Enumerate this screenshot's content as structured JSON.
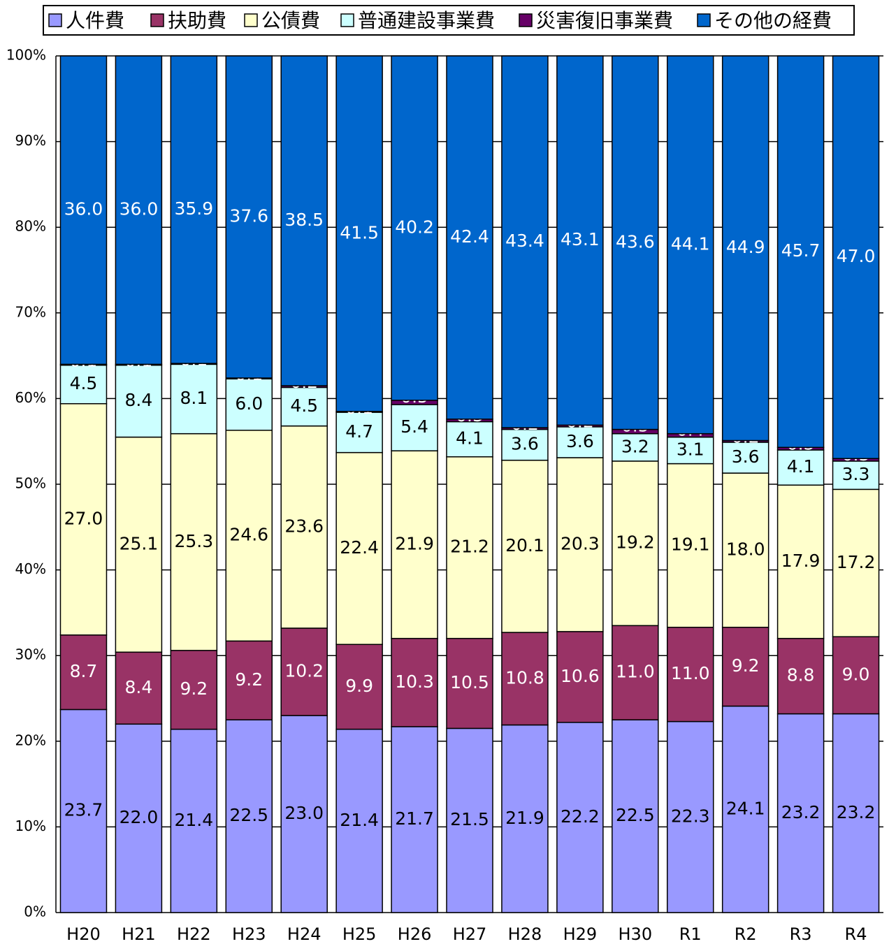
{
  "chart_data": {
    "type": "stacked_bar",
    "categories": [
      "H20",
      "H21",
      "H22",
      "H23",
      "H24",
      "H25",
      "H26",
      "H27",
      "H28",
      "H29",
      "H30",
      "R1",
      "R2",
      "R3",
      "R4"
    ],
    "ylim": [
      0,
      100
    ],
    "yticks": [
      {
        "value": 0,
        "label": "0%"
      },
      {
        "value": 10,
        "label": "10%"
      },
      {
        "value": 20,
        "label": "20%"
      },
      {
        "value": 30,
        "label": "30%"
      },
      {
        "value": 40,
        "label": "40%"
      },
      {
        "value": 50,
        "label": "50%"
      },
      {
        "value": 60,
        "label": "60%"
      },
      {
        "value": 70,
        "label": "70%"
      },
      {
        "value": 80,
        "label": "80%"
      },
      {
        "value": 90,
        "label": "90%"
      },
      {
        "value": 100,
        "label": "100%"
      }
    ],
    "grid": true,
    "legend": "top",
    "series": [
      {
        "name": "人件費",
        "color": "#9999ff",
        "values": [
          23.7,
          22.0,
          21.4,
          22.5,
          23.0,
          21.4,
          21.7,
          21.5,
          21.9,
          22.2,
          22.5,
          22.3,
          24.1,
          23.2,
          23.2
        ],
        "value_labels": [
          "23.7",
          "22.0",
          "21.4",
          "22.5",
          "23.0",
          "21.4",
          "21.7",
          "21.5",
          "21.9",
          "22.2",
          "22.5",
          "22.3",
          "24.1",
          "23.2",
          "23.2"
        ]
      },
      {
        "name": "扶助費",
        "color": "#993366",
        "values": [
          8.7,
          8.4,
          9.2,
          9.2,
          10.2,
          9.9,
          10.3,
          10.5,
          10.8,
          10.6,
          11.0,
          11.0,
          9.2,
          8.8,
          9.0
        ],
        "value_labels": [
          "8.7",
          "8.4",
          "9.2",
          "9.2",
          "10.2",
          "9.9",
          "10.3",
          "10.5",
          "10.8",
          "10.6",
          "11.0",
          "11.0",
          "9.2",
          "8.8",
          "9.0"
        ]
      },
      {
        "name": "公債費",
        "color": "#ffffcc",
        "values": [
          27.0,
          25.1,
          25.3,
          24.6,
          23.6,
          22.4,
          21.9,
          21.2,
          20.1,
          20.3,
          19.2,
          19.1,
          18.0,
          17.9,
          17.2
        ],
        "value_labels": [
          "27.0",
          "25.1",
          "25.3",
          "24.6",
          "23.6",
          "22.4",
          "21.9",
          "21.2",
          "20.1",
          "20.3",
          "19.2",
          "19.1",
          "18.0",
          "17.9",
          "17.2"
        ]
      },
      {
        "name": "普通建設事業費",
        "color": "#ccffff",
        "values": [
          4.5,
          8.4,
          8.1,
          6.0,
          4.5,
          4.7,
          5.4,
          4.1,
          3.6,
          3.6,
          3.2,
          3.1,
          3.6,
          4.1,
          3.3
        ],
        "value_labels": [
          "4.5",
          "8.4",
          "8.1",
          "6.0",
          "4.5",
          "4.7",
          "5.4",
          "4.1",
          "3.6",
          "3.6",
          "3.2",
          "3.1",
          "3.6",
          "4.1",
          "3.3"
        ]
      },
      {
        "name": "災害復旧事業費",
        "color": "#660066",
        "values": [
          0.1,
          0.1,
          0.1,
          0.1,
          0.2,
          0.1,
          0.5,
          0.3,
          0.2,
          0.2,
          0.5,
          0.4,
          0.2,
          0.3,
          0.3
        ],
        "value_labels": [
          "0.1",
          "0.1",
          "0.1",
          "0.1",
          "0.2",
          "0.1",
          "0.5",
          "0.3",
          "0.2",
          "0.2",
          "0.5",
          "0.4",
          "0.2",
          "0.3",
          "0.3"
        ]
      },
      {
        "name": "その他の経費",
        "color": "#0066cc",
        "values": [
          36.0,
          36.0,
          35.9,
          37.6,
          38.5,
          41.5,
          40.2,
          42.4,
          43.4,
          43.1,
          43.6,
          44.1,
          44.9,
          45.7,
          47.0
        ],
        "value_labels": [
          "36.0",
          "36.0",
          "35.9",
          "37.6",
          "38.5",
          "41.5",
          "40.2",
          "42.4",
          "43.4",
          "43.1",
          "43.6",
          "44.1",
          "44.9",
          "45.7",
          "47.0"
        ]
      }
    ]
  }
}
